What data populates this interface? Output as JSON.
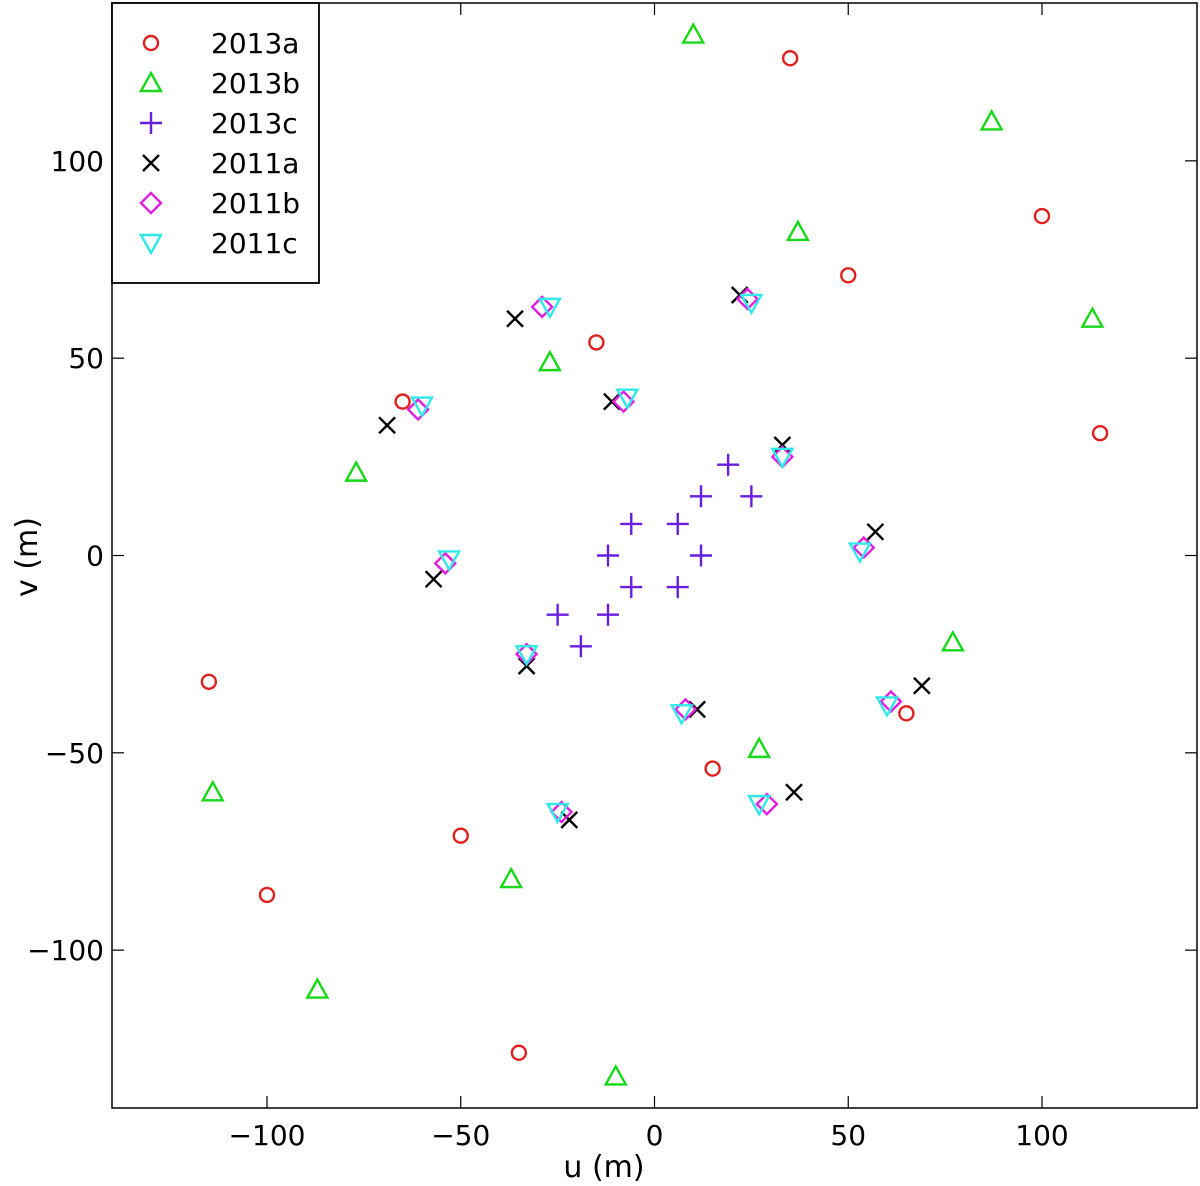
{
  "chart_data": {
    "type": "scatter",
    "xlabel": "u (m)",
    "ylabel": "v (m)",
    "xlim": [
      -140,
      140
    ],
    "ylim": [
      -140,
      140
    ],
    "xticks": [
      -100,
      -50,
      0,
      50,
      100
    ],
    "yticks": [
      -100,
      -50,
      0,
      50,
      100
    ],
    "xtick_labels": [
      "−100",
      "−50",
      "0",
      "50",
      "100"
    ],
    "ytick_labels": [
      "−100",
      "−50",
      "0",
      "50",
      "100"
    ],
    "grid": false,
    "legend_position": "top-left",
    "series": [
      {
        "name": "2013a",
        "marker": "circle",
        "color": "#e0201c",
        "points": [
          [
            35,
            126
          ],
          [
            100,
            86
          ],
          [
            50,
            71
          ],
          [
            -15,
            54
          ],
          [
            -65,
            39
          ],
          [
            115,
            31
          ],
          [
            -115,
            -32
          ],
          [
            65,
            -40
          ],
          [
            15,
            -54
          ],
          [
            -50,
            -71
          ],
          [
            -100,
            -86
          ],
          [
            -35,
            -126
          ]
        ]
      },
      {
        "name": "2013b",
        "marker": "triangle-up",
        "color": "#18d818",
        "points": [
          [
            10,
            132
          ],
          [
            87,
            110
          ],
          [
            37,
            82
          ],
          [
            113,
            60
          ],
          [
            -27,
            49
          ],
          [
            -77,
            21
          ],
          [
            77,
            -22
          ],
          [
            27,
            -49
          ],
          [
            -114,
            -60
          ],
          [
            -37,
            -82
          ],
          [
            -87,
            -110
          ],
          [
            -10,
            -132
          ]
        ]
      },
      {
        "name": "2013c",
        "marker": "plus",
        "color": "#6a1ee0",
        "points": [
          [
            19,
            23
          ],
          [
            12,
            15
          ],
          [
            25,
            15
          ],
          [
            -6,
            8
          ],
          [
            6,
            8
          ],
          [
            -12,
            0
          ],
          [
            12,
            0
          ],
          [
            -6,
            -8
          ],
          [
            6,
            -8
          ],
          [
            -25,
            -15
          ],
          [
            -12,
            -15
          ],
          [
            -19,
            -23
          ]
        ]
      },
      {
        "name": "2011a",
        "marker": "cross",
        "color": "#000000",
        "points": [
          [
            22,
            66
          ],
          [
            -36,
            60
          ],
          [
            -11,
            39
          ],
          [
            -69,
            33
          ],
          [
            33,
            28
          ],
          [
            57,
            6
          ],
          [
            -57,
            -6
          ],
          [
            -33,
            -28
          ],
          [
            69,
            -33
          ],
          [
            11,
            -39
          ],
          [
            36,
            -60
          ],
          [
            -22,
            -67
          ]
        ]
      },
      {
        "name": "2011b",
        "marker": "diamond",
        "color": "#e020e0",
        "points": [
          [
            24,
            65
          ],
          [
            -29,
            63
          ],
          [
            -8,
            39
          ],
          [
            -61,
            37
          ],
          [
            33,
            25
          ],
          [
            54,
            2
          ],
          [
            -54,
            -2
          ],
          [
            -33,
            -25
          ],
          [
            61,
            -37
          ],
          [
            8,
            -39
          ],
          [
            29,
            -63
          ],
          [
            -24,
            -65
          ]
        ]
      },
      {
        "name": "2011c",
        "marker": "triangle-down",
        "color": "#30e8e8",
        "points": [
          [
            25,
            64
          ],
          [
            -27,
            63
          ],
          [
            -7,
            40
          ],
          [
            -60,
            38
          ],
          [
            33,
            25
          ],
          [
            53,
            1
          ],
          [
            -53,
            -1
          ],
          [
            -33,
            -25
          ],
          [
            60,
            -38
          ],
          [
            7,
            -40
          ],
          [
            27,
            -63
          ],
          [
            -25,
            -65
          ]
        ]
      }
    ]
  }
}
